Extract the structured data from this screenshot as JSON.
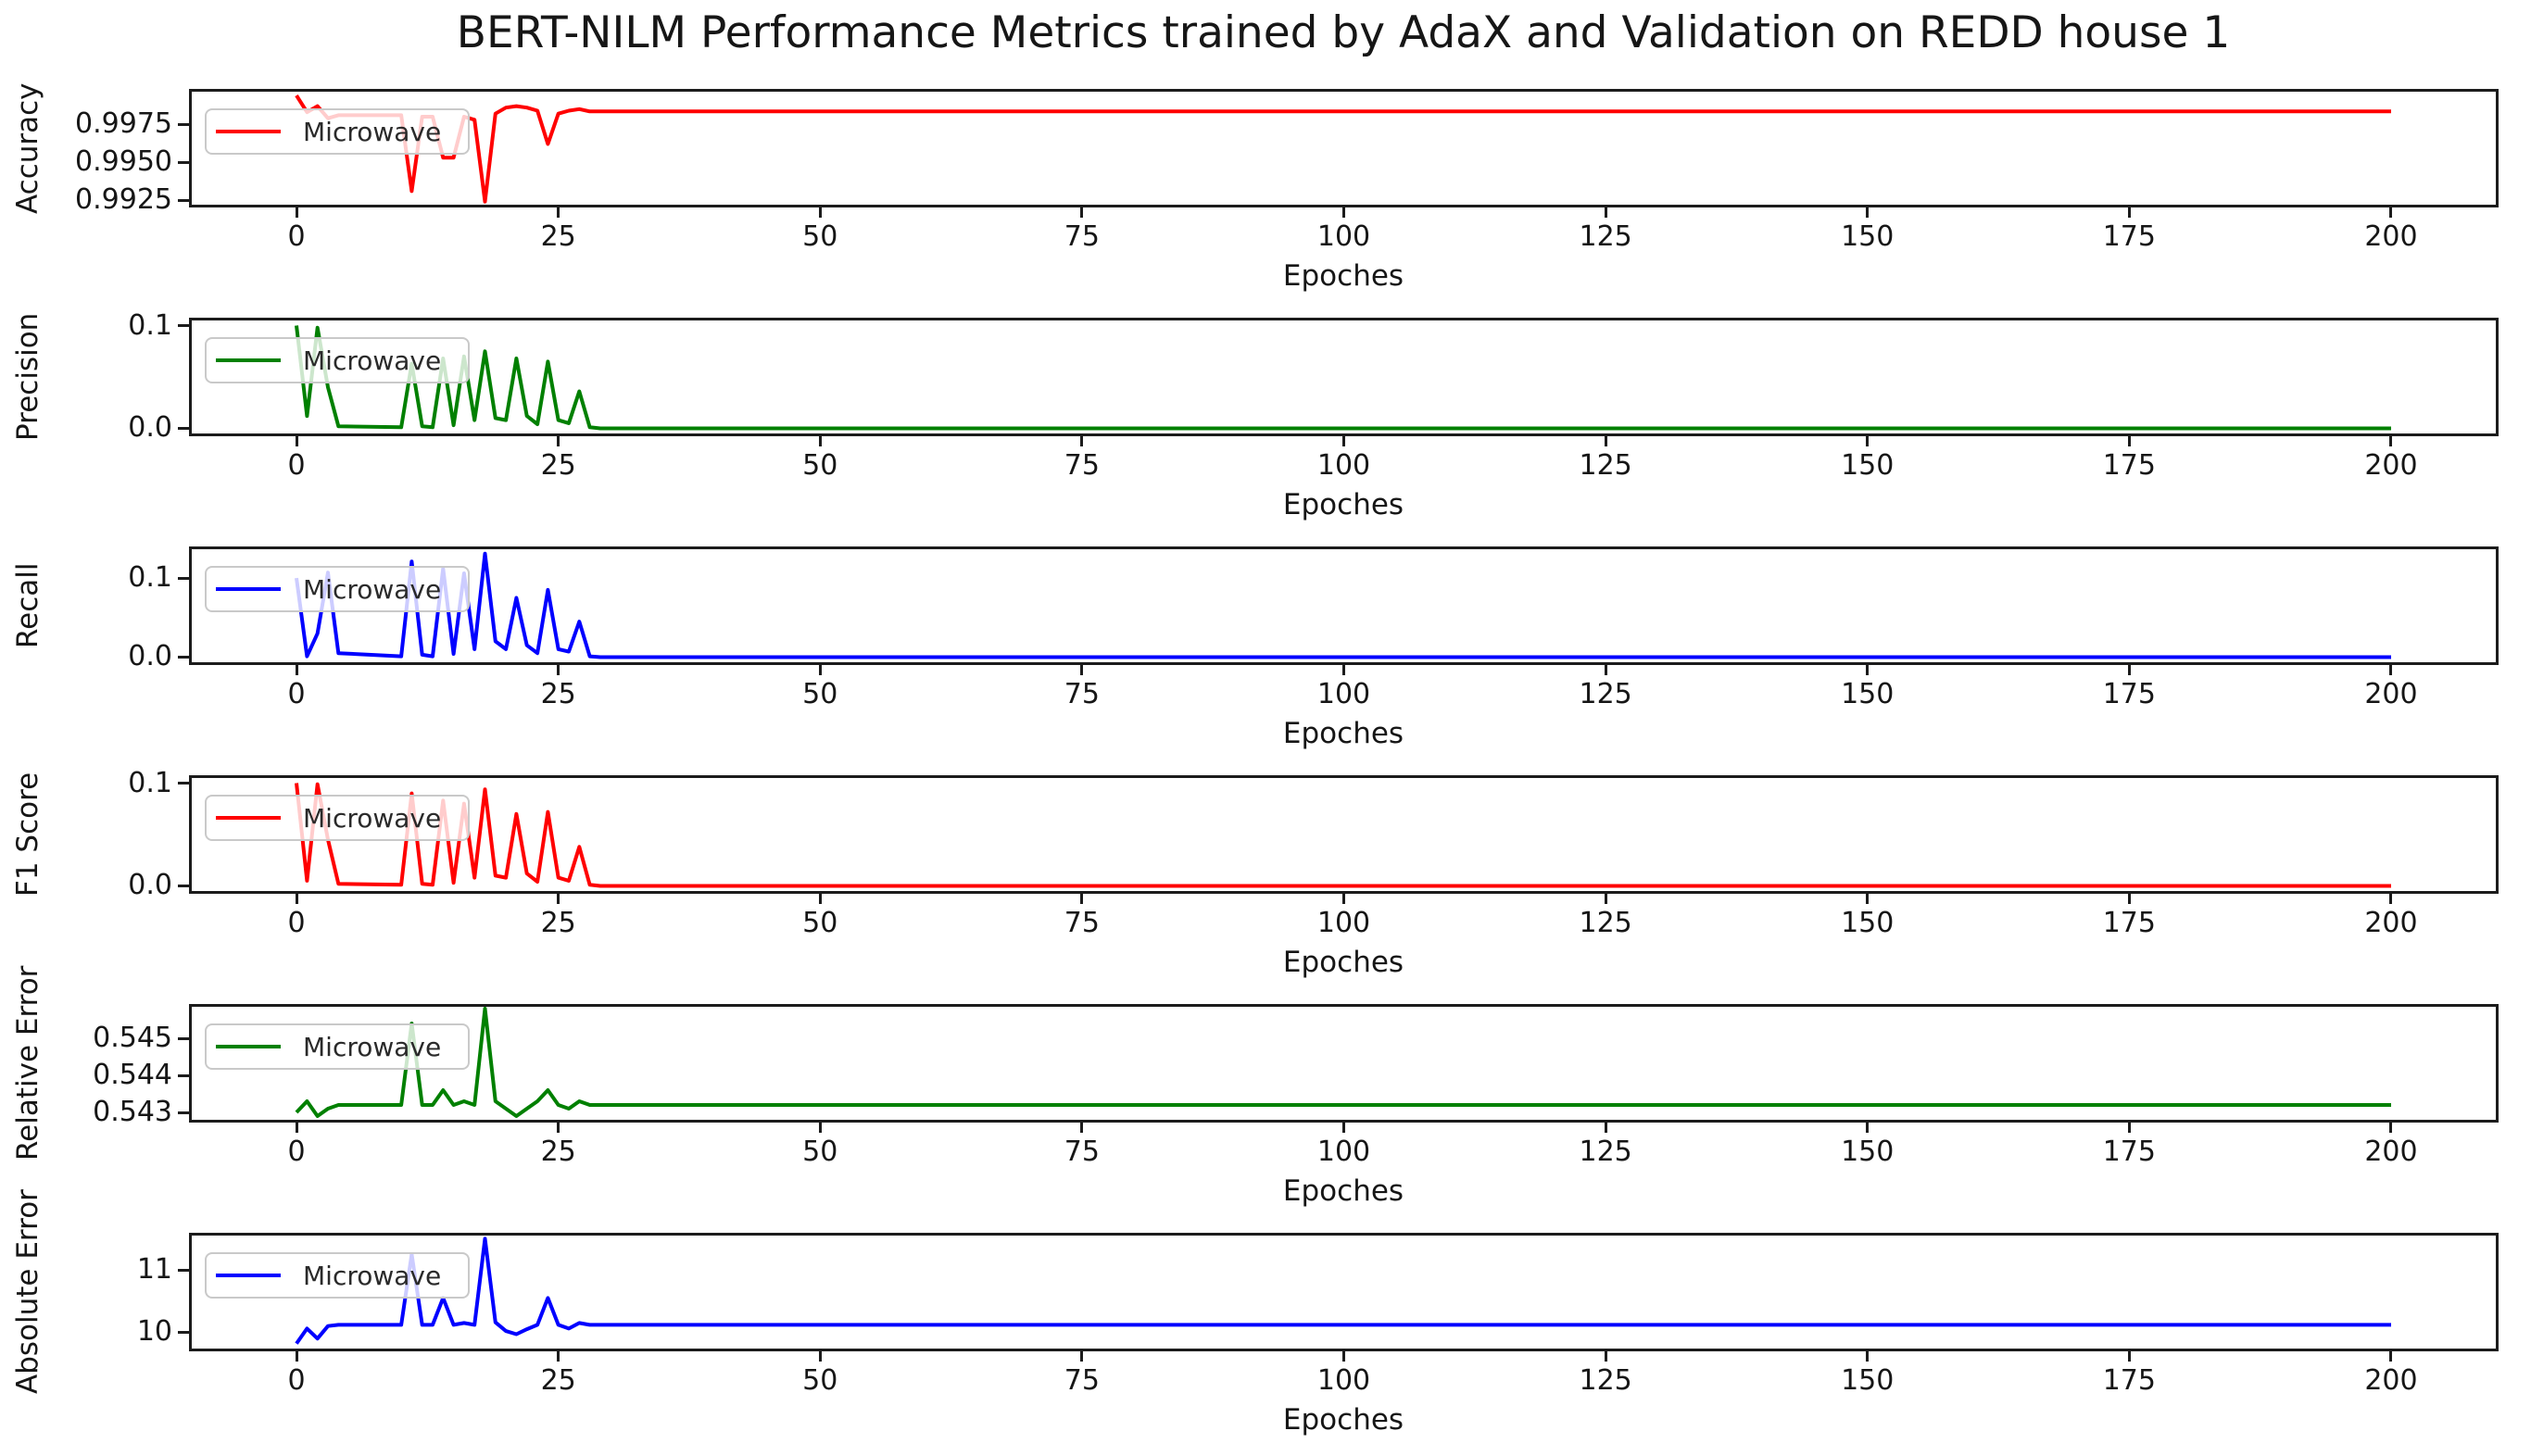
{
  "title": "BERT-NILM Performance Metrics trained by AdaX and Validation on REDD house 1",
  "legend_label": "Microwave",
  "chart_data": [
    {
      "type": "line",
      "ylabel": "Accuracy",
      "xlabel": "Epoches",
      "color": "#ff0000",
      "grid": false,
      "legend_position": "upper left",
      "xlim": [
        -10,
        210
      ],
      "ylim": [
        0.9922,
        0.99965
      ],
      "xticks": {
        "values": [
          0,
          25,
          50,
          75,
          100,
          125,
          150,
          175,
          200
        ],
        "labels": [
          "0",
          "25",
          "50",
          "75",
          "100",
          "125",
          "150",
          "175",
          "200"
        ]
      },
      "yticks": {
        "values": [
          0.9925,
          0.995,
          0.9975
        ],
        "labels": [
          "0.9925",
          "0.9950",
          "0.9975"
        ]
      },
      "series": [
        {
          "name": "Microwave",
          "points": [
            [
              0,
              0.9994
            ],
            [
              1,
              0.9983
            ],
            [
              2,
              0.9987
            ],
            [
              3,
              0.9979
            ],
            [
              4,
              0.9981
            ],
            [
              10,
              0.9981
            ],
            [
              11,
              0.9931
            ],
            [
              12,
              0.998
            ],
            [
              13,
              0.998
            ],
            [
              14,
              0.9953
            ],
            [
              15,
              0.9953
            ],
            [
              16,
              0.998
            ],
            [
              17,
              0.9978
            ],
            [
              18,
              0.9924
            ],
            [
              19,
              0.9982
            ],
            [
              20,
              0.9986
            ],
            [
              21,
              0.9987
            ],
            [
              22,
              0.9986
            ],
            [
              23,
              0.9984
            ],
            [
              24,
              0.9962
            ],
            [
              25,
              0.9982
            ],
            [
              26,
              0.9984
            ],
            [
              27,
              0.9985
            ],
            [
              28,
              0.99835
            ],
            [
              200,
              0.99835
            ]
          ]
        }
      ]
    },
    {
      "type": "line",
      "ylabel": "Precision",
      "xlabel": "Epoches",
      "color": "#008000",
      "grid": false,
      "legend_position": "upper left",
      "xlim": [
        -10,
        210
      ],
      "ylim": [
        -0.005,
        0.105
      ],
      "xticks": {
        "values": [
          0,
          25,
          50,
          75,
          100,
          125,
          150,
          175,
          200
        ],
        "labels": [
          "0",
          "25",
          "50",
          "75",
          "100",
          "125",
          "150",
          "175",
          "200"
        ]
      },
      "yticks": {
        "values": [
          0.0,
          0.1
        ],
        "labels": [
          "0.0",
          "0.1"
        ]
      },
      "series": [
        {
          "name": "Microwave",
          "points": [
            [
              0,
              0.1
            ],
            [
              1,
              0.012
            ],
            [
              2,
              0.098
            ],
            [
              3,
              0.04
            ],
            [
              4,
              0.002
            ],
            [
              10,
              0.001
            ],
            [
              11,
              0.063
            ],
            [
              12,
              0.002
            ],
            [
              13,
              0.001
            ],
            [
              14,
              0.068
            ],
            [
              15,
              0.003
            ],
            [
              16,
              0.07
            ],
            [
              17,
              0.008
            ],
            [
              18,
              0.075
            ],
            [
              19,
              0.01
            ],
            [
              20,
              0.008
            ],
            [
              21,
              0.068
            ],
            [
              22,
              0.012
            ],
            [
              23,
              0.004
            ],
            [
              24,
              0.065
            ],
            [
              25,
              0.008
            ],
            [
              26,
              0.005
            ],
            [
              27,
              0.036
            ],
            [
              28,
              0.001
            ],
            [
              29,
              0.0
            ],
            [
              200,
              0.0
            ]
          ]
        }
      ]
    },
    {
      "type": "line",
      "ylabel": "Recall",
      "xlabel": "Epoches",
      "color": "#0000ff",
      "grid": false,
      "legend_position": "upper left",
      "xlim": [
        -10,
        210
      ],
      "ylim": [
        -0.0065,
        0.1365
      ],
      "xticks": {
        "values": [
          0,
          25,
          50,
          75,
          100,
          125,
          150,
          175,
          200
        ],
        "labels": [
          "0",
          "25",
          "50",
          "75",
          "100",
          "125",
          "150",
          "175",
          "200"
        ]
      },
      "yticks": {
        "values": [
          0.0,
          0.1
        ],
        "labels": [
          "0.0",
          "0.1"
        ]
      },
      "series": [
        {
          "name": "Microwave",
          "points": [
            [
              0,
              0.1
            ],
            [
              1,
              0.001
            ],
            [
              2,
              0.03
            ],
            [
              3,
              0.107
            ],
            [
              4,
              0.005
            ],
            [
              10,
              0.001
            ],
            [
              11,
              0.121
            ],
            [
              12,
              0.003
            ],
            [
              13,
              0.001
            ],
            [
              14,
              0.112
            ],
            [
              15,
              0.004
            ],
            [
              16,
              0.106
            ],
            [
              17,
              0.01
            ],
            [
              18,
              0.131
            ],
            [
              19,
              0.02
            ],
            [
              20,
              0.01
            ],
            [
              21,
              0.075
            ],
            [
              22,
              0.015
            ],
            [
              23,
              0.005
            ],
            [
              24,
              0.085
            ],
            [
              25,
              0.01
            ],
            [
              26,
              0.007
            ],
            [
              27,
              0.045
            ],
            [
              28,
              0.001
            ],
            [
              29,
              0.0
            ],
            [
              200,
              0.0
            ]
          ]
        }
      ]
    },
    {
      "type": "line",
      "ylabel": "F1 Score",
      "xlabel": "Epoches",
      "color": "#ff0000",
      "grid": false,
      "legend_position": "upper left",
      "xlim": [
        -10,
        210
      ],
      "ylim": [
        -0.005,
        0.105
      ],
      "xticks": {
        "values": [
          0,
          25,
          50,
          75,
          100,
          125,
          150,
          175,
          200
        ],
        "labels": [
          "0",
          "25",
          "50",
          "75",
          "100",
          "125",
          "150",
          "175",
          "200"
        ]
      },
      "yticks": {
        "values": [
          0.0,
          0.1
        ],
        "labels": [
          "0.0",
          "0.1"
        ]
      },
      "series": [
        {
          "name": "Microwave",
          "points": [
            [
              0,
              0.1
            ],
            [
              1,
              0.005
            ],
            [
              2,
              0.099
            ],
            [
              3,
              0.045
            ],
            [
              4,
              0.002
            ],
            [
              10,
              0.001
            ],
            [
              11,
              0.09
            ],
            [
              12,
              0.002
            ],
            [
              13,
              0.001
            ],
            [
              14,
              0.083
            ],
            [
              15,
              0.003
            ],
            [
              16,
              0.08
            ],
            [
              17,
              0.008
            ],
            [
              18,
              0.094
            ],
            [
              19,
              0.01
            ],
            [
              20,
              0.008
            ],
            [
              21,
              0.07
            ],
            [
              22,
              0.012
            ],
            [
              23,
              0.004
            ],
            [
              24,
              0.072
            ],
            [
              25,
              0.008
            ],
            [
              26,
              0.005
            ],
            [
              27,
              0.038
            ],
            [
              28,
              0.001
            ],
            [
              29,
              0.0
            ],
            [
              200,
              0.0
            ]
          ]
        }
      ]
    },
    {
      "type": "line",
      "ylabel": "Relative Error",
      "xlabel": "Epoches",
      "color": "#008000",
      "grid": false,
      "legend_position": "upper left",
      "xlim": [
        -10,
        210
      ],
      "ylim": [
        0.5428,
        0.54585
      ],
      "xticks": {
        "values": [
          0,
          25,
          50,
          75,
          100,
          125,
          150,
          175,
          200
        ],
        "labels": [
          "0",
          "25",
          "50",
          "75",
          "100",
          "125",
          "150",
          "175",
          "200"
        ]
      },
      "yticks": {
        "values": [
          0.543,
          0.544,
          0.545
        ],
        "labels": [
          "0.543",
          "0.544",
          "0.545"
        ]
      },
      "series": [
        {
          "name": "Microwave",
          "points": [
            [
              0,
              0.543
            ],
            [
              1,
              0.5433
            ],
            [
              2,
              0.5429
            ],
            [
              3,
              0.5431
            ],
            [
              4,
              0.5432
            ],
            [
              10,
              0.5432
            ],
            [
              11,
              0.5454
            ],
            [
              12,
              0.5432
            ],
            [
              13,
              0.5432
            ],
            [
              14,
              0.5436
            ],
            [
              15,
              0.5432
            ],
            [
              16,
              0.5433
            ],
            [
              17,
              0.5432
            ],
            [
              18,
              0.5458
            ],
            [
              19,
              0.5433
            ],
            [
              20,
              0.5431
            ],
            [
              21,
              0.5429
            ],
            [
              22,
              0.5431
            ],
            [
              23,
              0.5433
            ],
            [
              24,
              0.5436
            ],
            [
              25,
              0.5432
            ],
            [
              26,
              0.5431
            ],
            [
              27,
              0.5433
            ],
            [
              28,
              0.5432
            ],
            [
              200,
              0.5432
            ]
          ]
        }
      ]
    },
    {
      "type": "line",
      "ylabel": "Absolute Error",
      "xlabel": "Epoches",
      "color": "#0000ff",
      "grid": false,
      "legend_position": "upper left",
      "xlim": [
        -10,
        210
      ],
      "ylim": [
        9.74,
        11.55
      ],
      "xticks": {
        "values": [
          0,
          25,
          50,
          75,
          100,
          125,
          150,
          175,
          200
        ],
        "labels": [
          "0",
          "25",
          "50",
          "75",
          "100",
          "125",
          "150",
          "175",
          "200"
        ]
      },
      "yticks": {
        "values": [
          10,
          11
        ],
        "labels": [
          "10",
          "11"
        ]
      },
      "series": [
        {
          "name": "Microwave",
          "points": [
            [
              0,
              9.82
            ],
            [
              1,
              10.06
            ],
            [
              2,
              9.9
            ],
            [
              3,
              10.1
            ],
            [
              4,
              10.12
            ],
            [
              10,
              10.12
            ],
            [
              11,
              11.25
            ],
            [
              12,
              10.12
            ],
            [
              13,
              10.12
            ],
            [
              14,
              10.55
            ],
            [
              15,
              10.12
            ],
            [
              16,
              10.15
            ],
            [
              17,
              10.12
            ],
            [
              18,
              11.5
            ],
            [
              19,
              10.16
            ],
            [
              20,
              10.02
            ],
            [
              21,
              9.97
            ],
            [
              22,
              10.05
            ],
            [
              23,
              10.12
            ],
            [
              24,
              10.55
            ],
            [
              25,
              10.12
            ],
            [
              26,
              10.06
            ],
            [
              27,
              10.15
            ],
            [
              28,
              10.12
            ],
            [
              200,
              10.12
            ]
          ]
        }
      ]
    }
  ]
}
